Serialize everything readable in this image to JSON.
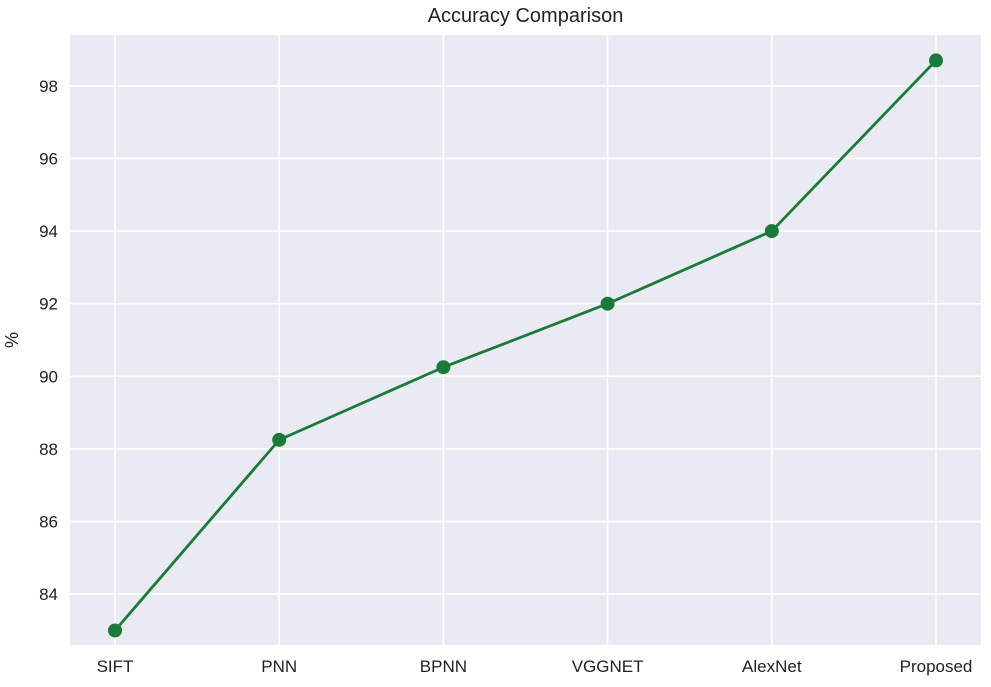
{
  "chart_data": {
    "type": "line",
    "title": "Accuracy Comparison",
    "xlabel": "",
    "ylabel": "%",
    "categories": [
      "SIFT",
      "PNN",
      "BPNN",
      "VGGNET",
      "AlexNet",
      "Proposed"
    ],
    "series": [
      {
        "values": [
          83.0,
          88.25,
          90.25,
          92.0,
          94.0,
          98.7
        ],
        "color": "#1a7a3a"
      }
    ],
    "ylim": [
      82.6,
      99.4
    ],
    "yticks": [
      84,
      86,
      88,
      90,
      92,
      94,
      96,
      98
    ],
    "grid": true,
    "background_color": "#eaeaf2",
    "grid_color": "#ffffff",
    "marker": "circle"
  }
}
